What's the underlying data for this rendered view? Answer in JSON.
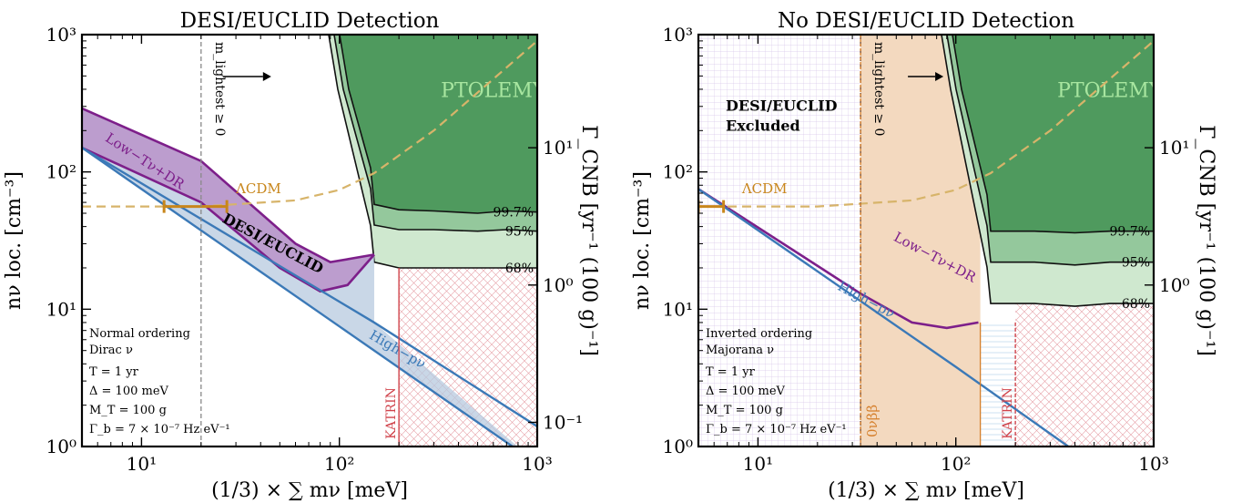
{
  "colors": {
    "ptolemy_dark": "#4f9a5e",
    "ptolemy_mid": "#94c89c",
    "ptolemy_light": "#cfe8cf",
    "purple": "#7d1f8a",
    "purple_fill": "#b98fc8",
    "blue": "#3b79b7",
    "blue_fill": "#b7c9df",
    "lcdm": "#d7b46a",
    "lcdm_bar": "#c8861b",
    "katrin": "#d0434b",
    "onubb": "#e9b98b",
    "onubb_line": "#d57f2b",
    "grid": "#d8c4e8"
  },
  "chart_data": [
    {
      "type": "line",
      "title": "DESI/EUCLID Detection",
      "xlabel": "(1/3) × ∑ mν [meV]",
      "ylabel": "nν loc. [cm⁻³]",
      "y2label": "Γ_CNB [yr⁻¹ (100 g)⁻¹]",
      "x_scale": "log",
      "y_scale": "log",
      "xlim": [
        5,
        1000
      ],
      "ylim": [
        1,
        1000
      ],
      "x_ticks": [
        "10¹",
        "10²",
        "10³"
      ],
      "y_ticks": [
        "10⁰",
        "10¹",
        "10²",
        "10³"
      ],
      "y2_ticks": [
        "10⁻¹",
        "10⁰",
        "10¹"
      ],
      "y2_tick_values": [
        0.1,
        1,
        10
      ],
      "series": [
        {
          "name": "Low−Tν+DR",
          "x": [
            5,
            20,
            60,
            90,
            150
          ],
          "y": [
            290,
            120,
            30,
            22,
            25
          ]
        },
        {
          "name": "High−pν",
          "x": [
            5,
            100,
            1000
          ],
          "y": [
            150,
            7.5,
            0.75
          ]
        },
        {
          "name": "ΛCDM",
          "x": [
            5,
            20,
            60,
            100,
            150,
            300,
            1000
          ],
          "y": [
            56,
            56,
            62,
            74,
            98,
            200,
            900
          ]
        }
      ],
      "band_label": "DESI/EUCLID",
      "contours": [
        {
          "name": "99.7%",
          "x": [
            150,
            200,
            300,
            500,
            700,
            1000
          ],
          "y": [
            58,
            53,
            52,
            50,
            52,
            51
          ]
        },
        {
          "name": "95%",
          "x": [
            150,
            200,
            300,
            500,
            700,
            1000
          ],
          "y": [
            41,
            38,
            38,
            37,
            38,
            37
          ]
        },
        {
          "name": "68%",
          "x": [
            150,
            200,
            300,
            500,
            700,
            1000
          ],
          "y": [
            22,
            20,
            20,
            20,
            20,
            20
          ]
        }
      ],
      "ptolemy_label": "PTOLEMY",
      "katrin_x": 200,
      "katrin_label": "KATRIN",
      "mlightest_x": 20,
      "mlightest_label": "m_lightest ≥ 0",
      "lcdm_bar": {
        "x": [
          13,
          27
        ],
        "y": 56
      },
      "lcdm_label": "ΛCDM",
      "low_label": "Low−Tν+DR",
      "high_label": "High−pν",
      "notes": [
        "Normal ordering",
        "Dirac ν",
        "T = 1 yr",
        "Δ = 100 meV",
        "M_T = 100 g",
        "Γ_b = 7 × 10⁻⁷ Hz eV⁻¹"
      ]
    },
    {
      "type": "line",
      "title": "No DESI/EUCLID Detection",
      "xlabel": "(1/3) × ∑ mν [meV]",
      "ylabel": "nν loc. [cm⁻³]",
      "y2label": "Γ_CNB [yr⁻¹ (100 g)⁻¹]",
      "x_scale": "log",
      "y_scale": "log",
      "xlim": [
        5,
        1000
      ],
      "ylim": [
        1,
        1000
      ],
      "x_ticks": [
        "10¹",
        "10²",
        "10³"
      ],
      "y_ticks": [
        "10⁰",
        "10¹",
        "10²",
        "10³"
      ],
      "y2_ticks": [
        "10⁰",
        "10¹"
      ],
      "y2_tick_values": [
        1,
        10
      ],
      "series": [
        {
          "name": "Low−Tν+DR",
          "x": [
            5,
            33,
            60,
            90,
            130
          ],
          "y": [
            75,
            13,
            8,
            7.3,
            8
          ]
        },
        {
          "name": "High−pν",
          "x": [
            5,
            100,
            370
          ],
          "y": [
            75,
            3.8,
            1
          ]
        },
        {
          "name": "ΛCDM",
          "x": [
            5,
            20,
            60,
            100,
            150,
            300,
            1000
          ],
          "y": [
            56,
            56,
            62,
            74,
            98,
            200,
            900
          ]
        }
      ],
      "excluded_label": [
        "DESI/EUCLID",
        "Excluded"
      ],
      "contours": [
        {
          "name": "99.7%",
          "x": [
            150,
            250,
            400,
            600,
            1000
          ],
          "y": [
            37,
            37,
            36,
            37,
            37
          ]
        },
        {
          "name": "95%",
          "x": [
            150,
            250,
            400,
            600,
            1000
          ],
          "y": [
            22,
            22,
            21,
            22,
            22
          ]
        },
        {
          "name": "68%",
          "x": [
            150,
            250,
            400,
            600,
            1000
          ],
          "y": [
            11,
            11,
            10.5,
            11,
            11
          ]
        }
      ],
      "ptolemy_label": "PTOLEMY",
      "katrin_x": 200,
      "katrin_label": "KATRIN",
      "mlightest_x": 33,
      "mlightest_label": "m_lightest ≥ 0",
      "onubb_x": [
        33,
        133
      ],
      "onubb_label": "0νββ",
      "lcdm_bar": {
        "x": [
          5,
          6.7
        ],
        "y": 56
      },
      "lcdm_label": "ΛCDM",
      "low_label": "Low−Tν+DR",
      "high_label": "High−pν",
      "notes": [
        "Inverted ordering",
        "Majorana ν",
        "T = 1 yr",
        "Δ = 100 meV",
        "M_T = 100 g",
        "Γ_b = 7 × 10⁻⁷ Hz eV⁻¹"
      ]
    }
  ]
}
